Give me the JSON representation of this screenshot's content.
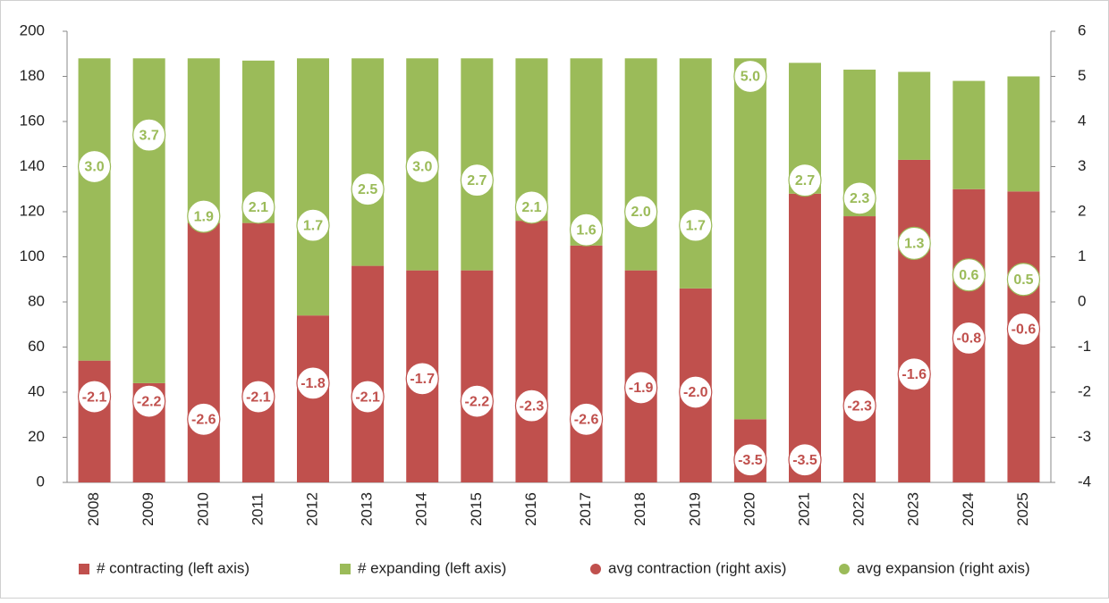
{
  "chart_data": {
    "type": "bar",
    "stacked": true,
    "categories": [
      "2008",
      "2009",
      "2010",
      "2011",
      "2012",
      "2013",
      "2014",
      "2015",
      "2016",
      "2017",
      "2018",
      "2019",
      "2020",
      "2021",
      "2022",
      "2023",
      "2024",
      "2025"
    ],
    "series": [
      {
        "name": "# contracting (left axis)",
        "color": "#c0504d",
        "type": "bar",
        "values": [
          54,
          44,
          115,
          115,
          74,
          96,
          94,
          94,
          116,
          105,
          94,
          86,
          28,
          128,
          118,
          143,
          130,
          129
        ]
      },
      {
        "name": "# expanding (left axis)",
        "color": "#9bbb59",
        "type": "bar",
        "values": [
          134,
          144,
          73,
          72,
          114,
          92,
          94,
          94,
          72,
          83,
          94,
          102,
          160,
          58,
          65,
          39,
          48,
          51
        ]
      },
      {
        "name": "avg contraction (right axis)",
        "color": "#c0504d",
        "type": "scatter",
        "axis": "y2",
        "values": [
          -2.1,
          -2.2,
          -2.6,
          -2.1,
          -1.8,
          -2.1,
          -1.7,
          -2.2,
          -2.3,
          -2.6,
          -1.9,
          -2.0,
          -3.5,
          -3.5,
          -2.3,
          -1.6,
          -0.8,
          -0.6
        ],
        "value_labels": [
          "-2.1",
          "-2.2",
          "-2.6",
          "-2.1",
          "-1.8",
          "-2.1",
          "-1.7",
          "-2.2",
          "-2.3",
          "-2.6",
          "-1.9",
          "-2.0",
          "-3.5",
          "-3.5",
          "-2.3",
          "-1.6",
          "-0.8",
          "-0.6"
        ]
      },
      {
        "name": "avg expansion (right axis)",
        "color": "#9bbb59",
        "type": "scatter",
        "axis": "y2",
        "values": [
          3.0,
          3.7,
          1.9,
          2.1,
          1.7,
          2.5,
          3.0,
          2.7,
          2.1,
          1.6,
          2.0,
          1.7,
          5.0,
          2.7,
          2.3,
          1.3,
          0.6,
          0.5
        ],
        "value_labels": [
          "3.0",
          "3.7",
          "1.9",
          "2.1",
          "1.7",
          "2.5",
          "3.0",
          "2.7",
          "2.1",
          "1.6",
          "2.0",
          "1.7",
          "5.0",
          "2.7",
          "2.3",
          "1.3",
          "0.6",
          "0.5"
        ]
      }
    ],
    "ylim": [
      0,
      200
    ],
    "yticks": [
      0,
      20,
      40,
      60,
      80,
      100,
      120,
      140,
      160,
      180,
      200
    ],
    "y2lim": [
      -4,
      6
    ],
    "y2ticks": [
      -4,
      -3,
      -2,
      -1,
      0,
      1,
      2,
      3,
      4,
      5,
      6
    ],
    "legend": "bottom",
    "grid": false
  }
}
